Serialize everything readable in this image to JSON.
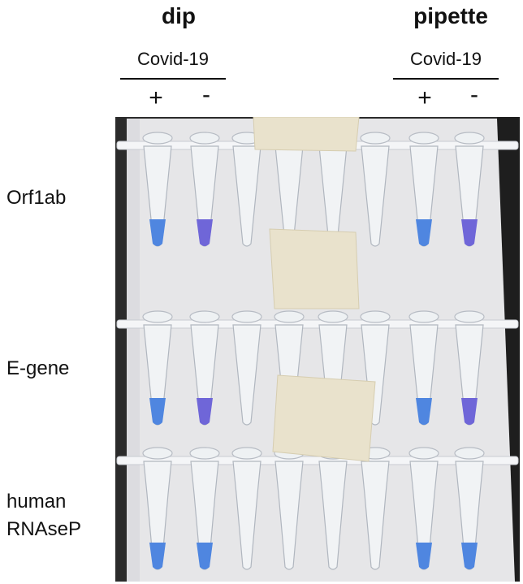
{
  "header": {
    "left_title": "dip",
    "right_title": "pipette",
    "left_subtitle": "Covid-19",
    "right_subtitle": "Covid-19",
    "left_plus": "+",
    "left_minus": "-",
    "right_plus": "+",
    "right_minus": "-"
  },
  "rows": {
    "orf1ab": "Orf1ab",
    "egene": "E-gene",
    "rnasep_line1": "human",
    "rnasep_line2": "RNAseP"
  },
  "colors": {
    "background": "#2b2b2b",
    "card": "#e6e6e8",
    "tape": "#e9e2cc",
    "positive_blue": "#4f86e0",
    "negative_purple": "#6f66d8",
    "tube_clear": "#f2f4f6"
  }
}
